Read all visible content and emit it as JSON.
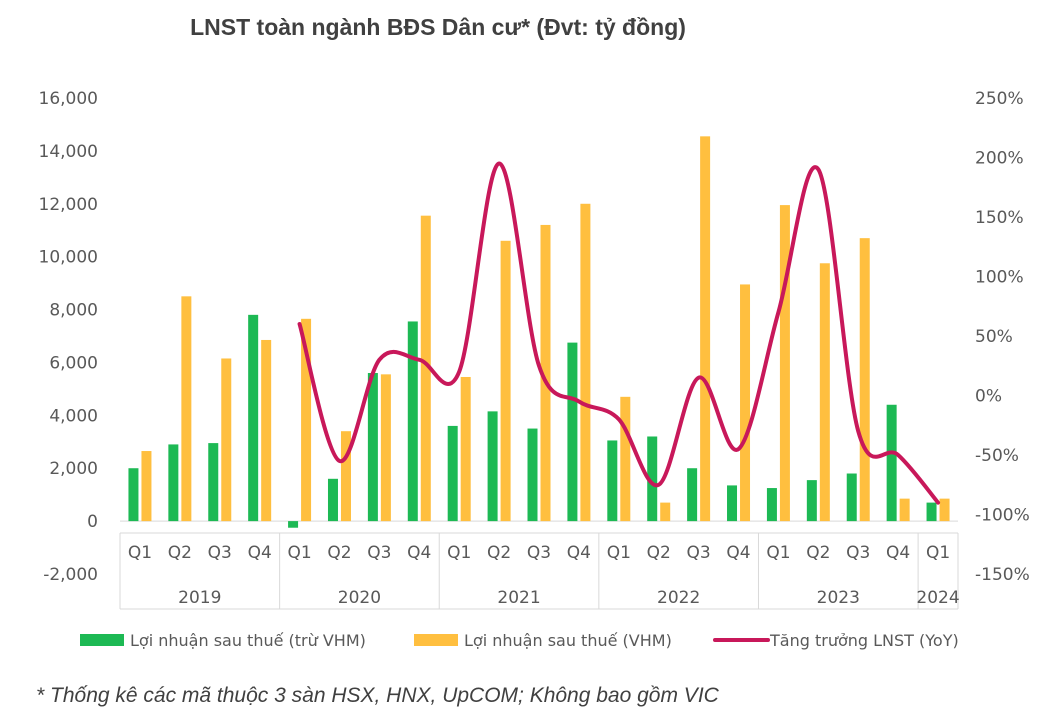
{
  "chart_data": {
    "type": "bar",
    "title": "LNST toàn ngành BĐS Dân cư* (Đvt: tỷ đồng)",
    "categories": [
      "Q1",
      "Q2",
      "Q3",
      "Q4",
      "Q1",
      "Q2",
      "Q3",
      "Q4",
      "Q1",
      "Q2",
      "Q3",
      "Q4",
      "Q1",
      "Q2",
      "Q3",
      "Q4",
      "Q1",
      "Q2",
      "Q3",
      "Q4",
      "Q1"
    ],
    "groups": [
      {
        "label": "2019",
        "count": 4
      },
      {
        "label": "2020",
        "count": 4
      },
      {
        "label": "2021",
        "count": 4
      },
      {
        "label": "2022",
        "count": 4
      },
      {
        "label": "2023",
        "count": 4
      },
      {
        "label": "2024",
        "count": 1
      }
    ],
    "ylim": [
      -2000,
      16000
    ],
    "yticks": [
      -2000,
      0,
      2000,
      4000,
      6000,
      8000,
      10000,
      12000,
      14000,
      16000
    ],
    "ytick_labels": [
      "-2,000",
      "0",
      "2,000",
      "4,000",
      "6,000",
      "8,000",
      "10,000",
      "12,000",
      "14,000",
      "16,000"
    ],
    "y2lim": [
      -150,
      250
    ],
    "y2ticks": [
      -150,
      -100,
      -50,
      0,
      50,
      100,
      150,
      200,
      250
    ],
    "y2tick_labels": [
      "-150%",
      "-100%",
      "-50%",
      "0%",
      "50%",
      "100%",
      "150%",
      "200%",
      "250%"
    ],
    "series": [
      {
        "name": "Lợi nhuận sau thuế (trừ VHM)",
        "kind": "bar",
        "color": "#1DB954",
        "values": [
          2000,
          2900,
          2950,
          7800,
          -250,
          1600,
          5600,
          7550,
          3600,
          4150,
          3500,
          6750,
          3050,
          3200,
          2000,
          1350,
          1250,
          1550,
          1800,
          4400,
          700
        ]
      },
      {
        "name": "Lợi nhuận sau thuế (VHM)",
        "kind": "bar",
        "color": "#FFBF3F",
        "values": [
          2650,
          8500,
          6150,
          6850,
          7650,
          3400,
          5550,
          11550,
          5450,
          10600,
          11200,
          12000,
          4700,
          700,
          14550,
          8950,
          11950,
          9750,
          10700,
          850,
          850
        ]
      },
      {
        "name": "Tăng trưởng LNST (YoY)",
        "kind": "line",
        "axis": "secondary",
        "color": "#C8185A",
        "values": [
          null,
          null,
          null,
          null,
          60,
          -55,
          30,
          30,
          20,
          195,
          25,
          -5,
          -20,
          -75,
          15,
          -45,
          70,
          190,
          -30,
          -50,
          -90
        ]
      }
    ]
  },
  "footnote": "* Thống kê các mã thuộc 3 sàn HSX, HNX, UpCOM; Không bao gồm VIC"
}
